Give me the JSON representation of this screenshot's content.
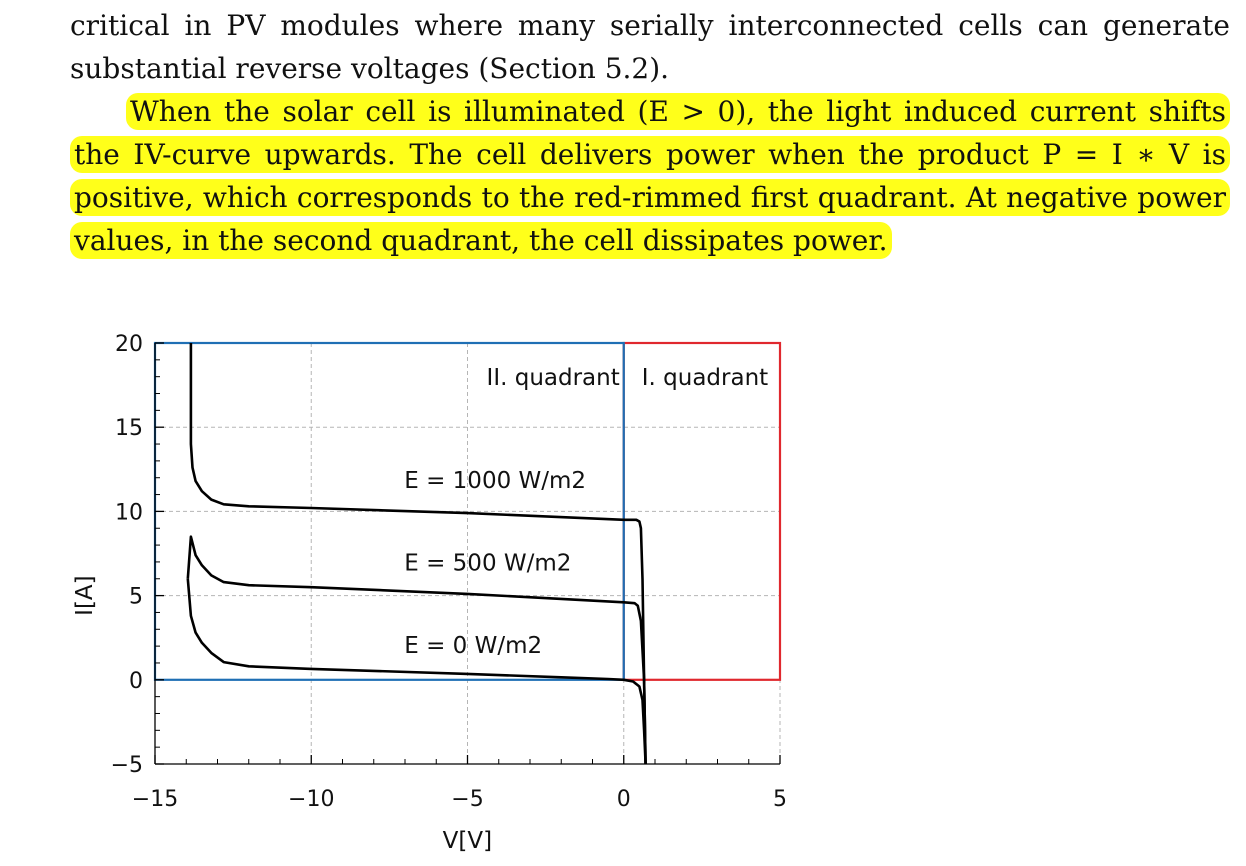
{
  "text": {
    "para1": "critical in PV modules where many serially interconnected cells can generate substantial reverse voltages (Section 5.2).",
    "para2": "When the solar cell is illuminated (E > 0), the light induced current shifts the IV-curve upwards. The cell delivers power when the product P = I ∗ V is positive, which corresponds to the red-rimmed first quadrant. At negative power values, in the second quadrant, the cell dissipates power."
  },
  "colors": {
    "highlight": "#ffff1a",
    "quadrant_II": "#1f6fb4",
    "quadrant_I": "#e0282e",
    "curve": "#000000"
  },
  "chart_data": {
    "type": "line",
    "xlabel": "V[V]",
    "ylabel": "I[A]",
    "xlim": [
      -15,
      5
    ],
    "ylim": [
      -5,
      20
    ],
    "xticks": [
      -15,
      -10,
      -5,
      0,
      5
    ],
    "yticks": [
      -5,
      0,
      5,
      10,
      15,
      20
    ],
    "tick_labels": {
      "x": [
        "−15",
        "−10",
        "−5",
        "0",
        "5"
      ],
      "y": [
        "−5",
        "0",
        "5",
        "10",
        "15",
        "20"
      ]
    },
    "grid": true,
    "annotations": {
      "quadrant_II": "II. quadrant",
      "quadrant_I": "I. quadrant"
    },
    "series": [
      {
        "name": "E = 1000 W/m2",
        "label_at": [
          -6,
          11.4
        ],
        "x": [
          -13.85,
          -13.85,
          -13.8,
          -13.7,
          -13.5,
          -13.2,
          -12.8,
          -12.0,
          -10.0,
          -5.0,
          0.0,
          0.4,
          0.5,
          0.55,
          0.6,
          0.65,
          0.7
        ],
        "y": [
          20,
          14.0,
          12.6,
          11.8,
          11.2,
          10.7,
          10.42,
          10.3,
          10.2,
          9.9,
          9.5,
          9.5,
          9.4,
          9.0,
          6.0,
          0.0,
          -5.0
        ]
      },
      {
        "name": "E = 500 W/m2",
        "label_at": [
          -6,
          6.5
        ],
        "x": [
          -13.95,
          -13.85,
          -13.7,
          -13.5,
          -13.2,
          -12.8,
          -12.0,
          -10.0,
          -5.0,
          0.0,
          0.35,
          0.45,
          0.55,
          0.65,
          0.7
        ],
        "y": [
          6.0,
          8.5,
          7.4,
          6.8,
          6.2,
          5.8,
          5.62,
          5.5,
          5.1,
          4.6,
          4.55,
          4.4,
          3.5,
          0.0,
          -5.0
        ]
      },
      {
        "name": "E = 0 W/m2",
        "label_at": [
          -6,
          1.6
        ],
        "x": [
          -13.95,
          -13.85,
          -13.7,
          -13.5,
          -13.2,
          -12.8,
          -12.0,
          -10.0,
          -5.0,
          -2.0,
          -0.5,
          0.0,
          0.3,
          0.5,
          0.6,
          0.65,
          0.7
        ],
        "y": [
          6.0,
          3.8,
          2.8,
          2.2,
          1.6,
          1.05,
          0.8,
          0.65,
          0.35,
          0.15,
          0.05,
          0.0,
          -0.1,
          -0.4,
          -1.2,
          -3.0,
          -5.0
        ]
      }
    ]
  }
}
